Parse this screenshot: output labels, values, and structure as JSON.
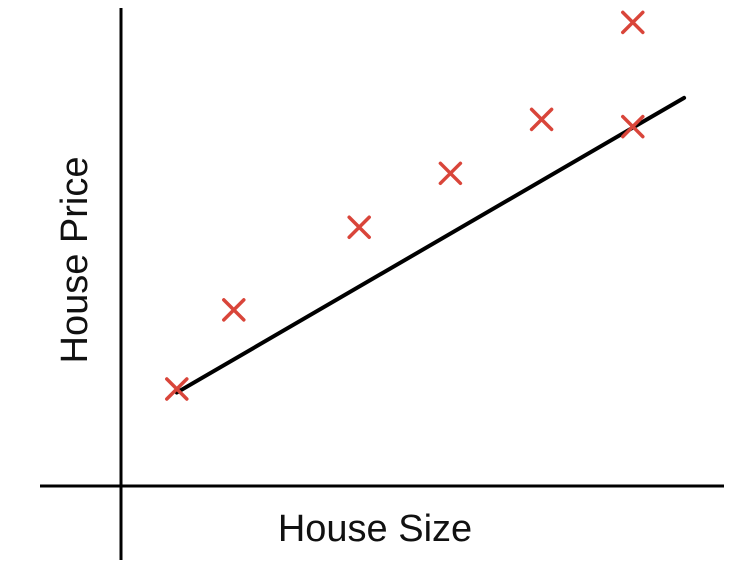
{
  "chart_data": {
    "type": "scatter",
    "xlabel": "House Size",
    "ylabel": "House Price",
    "title": "",
    "ticks": "none",
    "grid": false,
    "legend": "none",
    "marker": "x",
    "colors": {
      "points": "#d9453a",
      "fit_line": "#000000",
      "axes": "#000000"
    },
    "points": [
      {
        "x": 1.0,
        "y": 1.7
      },
      {
        "x": 2.0,
        "y": 3.9
      },
      {
        "x": 4.2,
        "y": 6.2
      },
      {
        "x": 5.8,
        "y": 7.7
      },
      {
        "x": 7.4,
        "y": 9.2
      },
      {
        "x": 9.0,
        "y": 9.0
      },
      {
        "x": 9.0,
        "y": 11.9
      }
    ],
    "fit_line": {
      "x1": 1.0,
      "x2": 9.9,
      "y1": 1.6,
      "y2": 9.8
    },
    "xlim": [
      -1.4,
      10.6
    ],
    "ylim": [
      -1.0,
      12.3
    ]
  }
}
